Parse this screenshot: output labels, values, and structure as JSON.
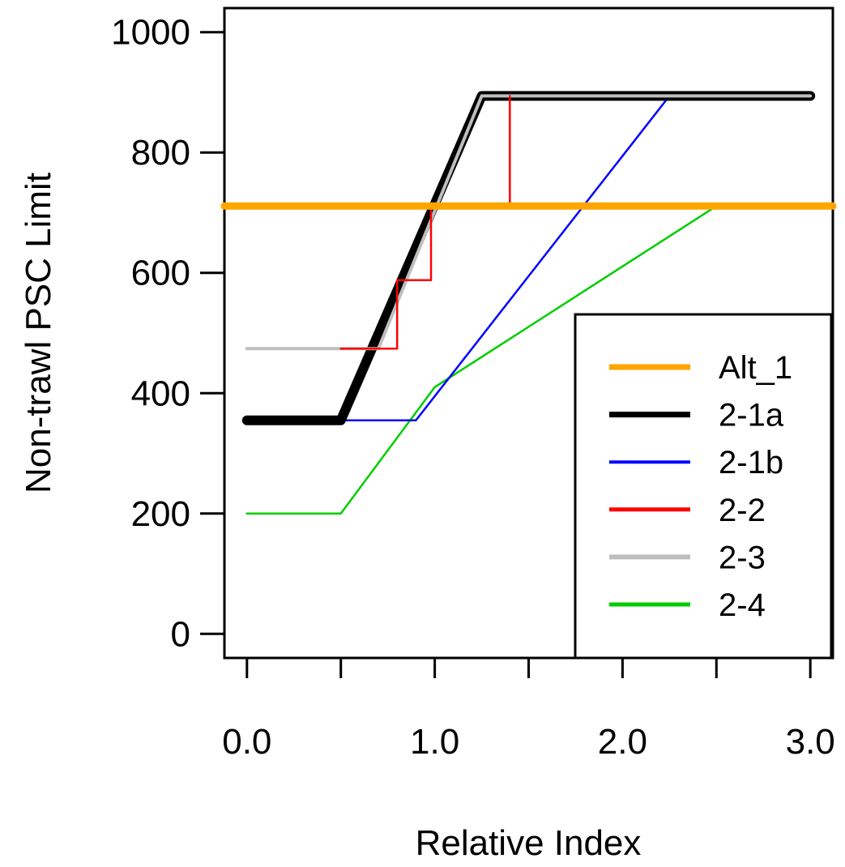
{
  "chart_data": {
    "type": "line",
    "title": "",
    "xlabel": "Relative Index",
    "ylabel": "Non-trawl PSC Limit",
    "xlim": [
      -0.12,
      3.12
    ],
    "ylim": [
      -40,
      1040
    ],
    "x_ticks": [
      0,
      0.5,
      1,
      1.5,
      2,
      2.5,
      3
    ],
    "x_tick_labels": [
      {
        "value": 0,
        "label": "0.0"
      },
      {
        "value": 1,
        "label": "1.0"
      },
      {
        "value": 2,
        "label": "2.0"
      },
      {
        "value": 3,
        "label": "3.0"
      }
    ],
    "y_ticks": [
      0,
      200,
      400,
      600,
      800,
      1000
    ],
    "y_tick_labels": [
      "0",
      "200",
      "400",
      "600",
      "800",
      "1000"
    ],
    "grid": false,
    "legend_position": "bottom-right",
    "series": [
      {
        "name": "Alt_1",
        "color": "#FFA500",
        "width": 9,
        "x": [
          -0.12,
          3.12
        ],
        "y": [
          711,
          711
        ]
      },
      {
        "name": "2-1a",
        "color": "#000000",
        "width": 12,
        "x": [
          0,
          0.5,
          1.25,
          3
        ],
        "y": [
          355,
          355,
          894,
          894
        ]
      },
      {
        "name": "2-1b",
        "color": "#0000FF",
        "width": 2.5,
        "x": [
          0,
          0.9,
          2.25
        ],
        "y": [
          355,
          355,
          894
        ]
      },
      {
        "name": "2-2",
        "color": "#FF0000",
        "width": 2.5,
        "x": [
          0.5,
          0.8,
          0.8,
          0.98,
          0.98,
          1.4,
          1.4
        ],
        "y": [
          474,
          474,
          588,
          588,
          711,
          711,
          894
        ]
      },
      {
        "name": "2-3",
        "color": "#BEBEBE",
        "width": 4,
        "x": [
          0,
          0.7,
          1.25,
          3
        ],
        "y": [
          474,
          474,
          894,
          894
        ]
      },
      {
        "name": "2-4",
        "color": "#00CD00",
        "width": 2.5,
        "x": [
          0,
          0.5,
          1,
          2.5,
          3
        ],
        "y": [
          200,
          200,
          410,
          711,
          711
        ]
      }
    ]
  }
}
